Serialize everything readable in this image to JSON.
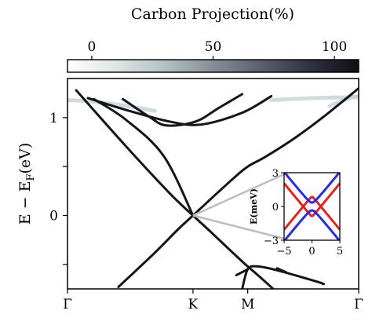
{
  "colorbar": {
    "title": "Carbon Projection(%)",
    "ticks": [
      0,
      50,
      100
    ],
    "range": [
      -10,
      110
    ],
    "colors": [
      "#ffffff",
      "#dde5e5",
      "#b4c1c2",
      "#858e96",
      "#5b5f6e",
      "#303240",
      "#0f0f15"
    ]
  },
  "chart_data": [
    {
      "type": "line",
      "title": "",
      "xlabel": "",
      "ylabel": "E − E",
      "ylabel_sub": "F",
      "ylabel_unit": "(eV)",
      "ylim": [
        -0.75,
        1.4
      ],
      "xlim": [
        0,
        1
      ],
      "x_ticks": [
        {
          "label": "Γ",
          "x": 0.0
        },
        {
          "label": "K",
          "x": 0.431
        },
        {
          "label": "M",
          "x": 0.619
        },
        {
          "label": "Γ",
          "x": 1.0
        }
      ],
      "y_ticks": [
        -0.5,
        0,
        0.5,
        1
      ],
      "y_tick_labels": [
        "",
        "0",
        "",
        "1"
      ],
      "grid": false,
      "line_color": "#15151c",
      "series": [
        {
          "points": [
            [
              0.03,
              1.28
            ],
            [
              0.2,
              0.71
            ],
            [
              0.35,
              0.23
            ],
            [
              0.431,
              0.0
            ],
            [
              0.5,
              -0.19
            ],
            [
              0.6,
              -0.47
            ],
            [
              0.65,
              -0.6
            ],
            [
              0.71,
              -0.76
            ]
          ]
        },
        {
          "points": [
            [
              0.175,
              -0.73
            ],
            [
              0.3,
              -0.38
            ],
            [
              0.38,
              -0.14
            ],
            [
              0.431,
              0.0
            ],
            [
              0.5,
              0.19
            ],
            [
              0.57,
              0.38
            ],
            [
              0.619,
              0.5
            ],
            [
              0.68,
              0.6
            ],
            [
              0.78,
              0.79
            ],
            [
              0.88,
              1.01
            ],
            [
              1.0,
              1.3
            ]
          ]
        },
        {
          "points": [
            [
              0.09,
              1.19
            ],
            [
              0.2,
              0.98
            ],
            [
              0.33,
              0.61
            ],
            [
              0.431,
              0.0
            ]
          ]
        },
        {
          "points": [
            [
              0.19,
              1.19
            ],
            [
              0.28,
              1.01
            ],
            [
              0.34,
              0.92
            ],
            [
              0.44,
              0.96
            ],
            [
              0.52,
              1.1
            ],
            [
              0.6,
              1.24
            ]
          ]
        },
        {
          "points": [
            [
              0.07,
              1.2
            ],
            [
              0.2,
              1.08
            ],
            [
              0.35,
              0.96
            ],
            [
              0.46,
              0.93
            ],
            [
              0.6,
              1.05
            ],
            [
              0.7,
              1.22
            ]
          ]
        },
        {
          "points": [
            [
              0.6,
              -0.75
            ],
            [
              0.619,
              -0.55
            ],
            [
              0.65,
              -0.52
            ],
            [
              0.72,
              -0.56
            ],
            [
              0.85,
              -0.67
            ],
            [
              0.88,
              -0.7
            ]
          ]
        },
        {
          "points": [
            [
              0.619,
              -0.55
            ],
            [
              0.58,
              -0.61
            ]
          ]
        },
        {
          "points": [
            [
              0.72,
              -0.54
            ],
            [
              0.75,
              -0.58
            ]
          ]
        }
      ],
      "faded_segments": [
        {
          "points": [
            [
              0.0,
              1.18
            ],
            [
              0.1,
              1.16
            ],
            [
              0.2,
              1.12
            ],
            [
              0.3,
              1.07
            ]
          ]
        },
        {
          "points": [
            [
              0.7,
              1.18
            ],
            [
              0.85,
              1.2
            ],
            [
              1.0,
              1.21
            ]
          ]
        },
        {
          "points": [
            [
              0.9,
              1.12
            ],
            [
              0.97,
              1.2
            ],
            [
              1.0,
              1.22
            ]
          ]
        }
      ]
    },
    {
      "type": "line",
      "title": "",
      "xlabel": "",
      "ylabel": "E(meV)",
      "xlim": [
        -5,
        5
      ],
      "ylim": [
        -3,
        3
      ],
      "x_ticks": [
        -5,
        0,
        5
      ],
      "y_ticks": [
        -3,
        0,
        3
      ],
      "gap_meV": 0.5,
      "series": [
        {
          "color": "#2a2ae8",
          "band": "upper"
        },
        {
          "color": "#e82020",
          "band": "lower"
        }
      ]
    }
  ]
}
